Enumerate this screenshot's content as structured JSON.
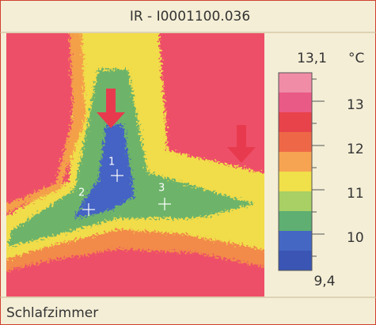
{
  "header": {
    "title": "IR - I0001100.036"
  },
  "image": {
    "markers": [
      "1",
      "2",
      "3"
    ]
  },
  "scale": {
    "max": "13,1",
    "unit": "°C",
    "ticks": [
      "13",
      "12",
      "11",
      "10"
    ],
    "min": "9,4"
  },
  "caption": "Schlafzimmer"
}
